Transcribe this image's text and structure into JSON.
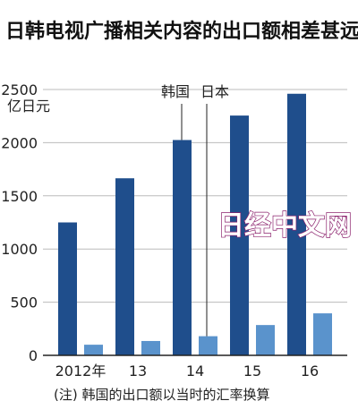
{
  "chart_data": {
    "type": "bar",
    "title": "日韩电视广播相关内容的出口额相差甚远",
    "ylabel": "亿日元",
    "categories": [
      "2012年",
      "13",
      "14",
      "15",
      "16"
    ],
    "ylim": [
      0,
      2500
    ],
    "yticks": [
      "0",
      "500",
      "1000",
      "1500",
      "2000",
      "2500"
    ],
    "series": [
      {
        "name": "韩国",
        "color": "#1f4e8c",
        "values": [
          1250,
          1665,
          2025,
          2255,
          2460
        ]
      },
      {
        "name": "日本",
        "color": "#5a93cc",
        "values": [
          100,
          135,
          180,
          285,
          395
        ]
      }
    ],
    "note": "(注) 韩国的出口额以当时的汇率换算",
    "watermark": "日经中文网"
  }
}
